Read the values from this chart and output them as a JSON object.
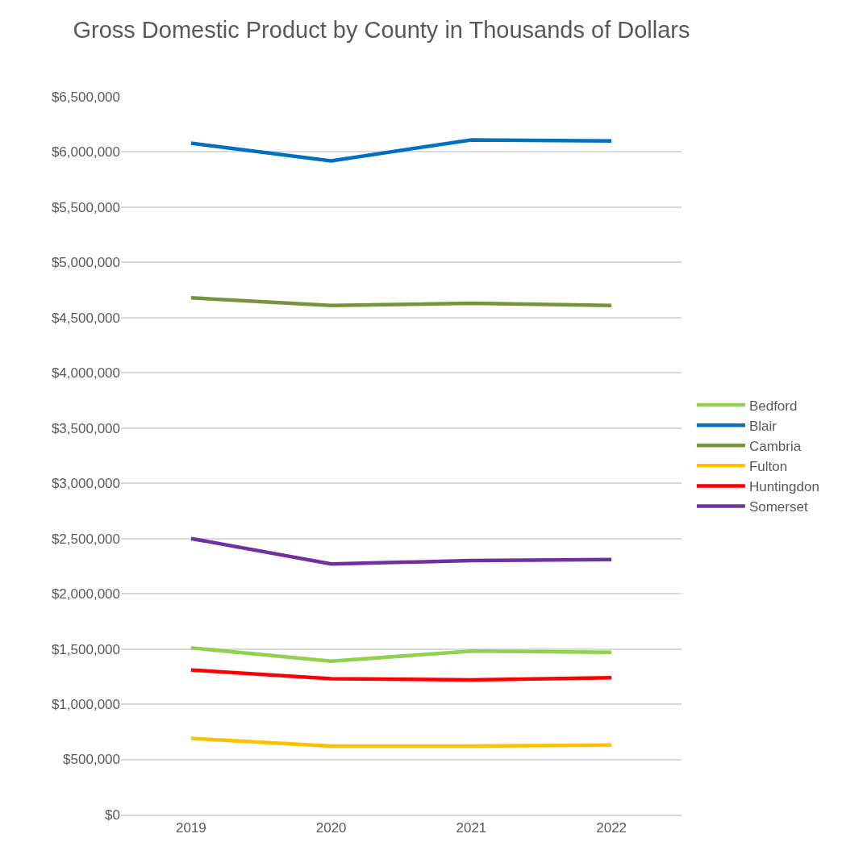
{
  "chart_data": {
    "type": "line",
    "title": "Gross Domestic Product by County in Thousands of Dollars",
    "categories": [
      "2019",
      "2020",
      "2021",
      "2022"
    ],
    "series": [
      {
        "name": "Bedford",
        "color": "#92d050",
        "values": [
          1510000,
          1390000,
          1480000,
          1470000
        ]
      },
      {
        "name": "Blair",
        "color": "#0070c0",
        "values": [
          6080000,
          5920000,
          6110000,
          6100000
        ]
      },
      {
        "name": "Cambria",
        "color": "#77933c",
        "values": [
          4680000,
          4610000,
          4630000,
          4610000
        ]
      },
      {
        "name": "Fulton",
        "color": "#ffc000",
        "values": [
          690000,
          620000,
          620000,
          630000
        ]
      },
      {
        "name": "Huntingdon",
        "color": "#ff0000",
        "values": [
          1310000,
          1230000,
          1220000,
          1240000
        ]
      },
      {
        "name": "Somerset",
        "color": "#7030a0",
        "values": [
          2500000,
          2270000,
          2300000,
          2310000
        ]
      }
    ],
    "ylim": [
      0,
      6500000
    ],
    "yticks": [
      {
        "value": 0,
        "label": "$0"
      },
      {
        "value": 500000,
        "label": "$500,000"
      },
      {
        "value": 1000000,
        "label": "$1,000,000"
      },
      {
        "value": 1500000,
        "label": "$1,500,000"
      },
      {
        "value": 2000000,
        "label": "$2,000,000"
      },
      {
        "value": 2500000,
        "label": "$2,500,000"
      },
      {
        "value": 3000000,
        "label": "$3,000,000"
      },
      {
        "value": 3500000,
        "label": "$3,500,000"
      },
      {
        "value": 4000000,
        "label": "$4,000,000"
      },
      {
        "value": 4500000,
        "label": "$4,500,000"
      },
      {
        "value": 5000000,
        "label": "$5,000,000"
      },
      {
        "value": 5500000,
        "label": "$5,500,000"
      },
      {
        "value": 6000000,
        "label": "$6,000,000"
      },
      {
        "value": 6500000,
        "label": "$6,500,000"
      }
    ],
    "grid": "y",
    "legend": "right",
    "marker": "none",
    "line_style": "solid"
  }
}
